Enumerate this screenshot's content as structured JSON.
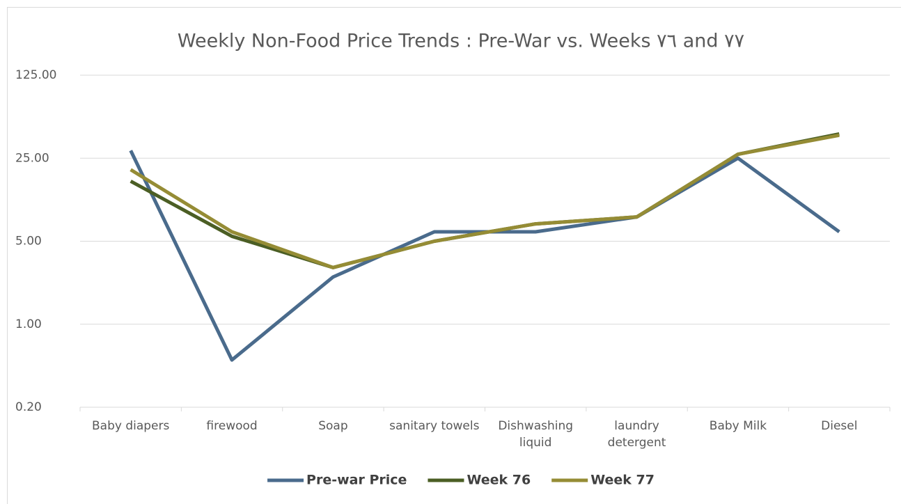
{
  "chart_data": {
    "type": "line",
    "title": "Weekly Non-Food Price Trends : Pre-War vs. Weeks ٧٦ and ٧٧",
    "categories": [
      "Baby diapers",
      "firewood",
      "Soap",
      "sanitary towels",
      "Dishwashing liquid",
      "laundry detergent",
      "Baby Milk",
      "Diesel"
    ],
    "series": [
      {
        "name": "Pre-war Price",
        "color": "#4a6b8c",
        "values": [
          29,
          0.5,
          2.5,
          6,
          6,
          8,
          25,
          6
        ]
      },
      {
        "name": "Week 76",
        "color": "#4b5e24",
        "values": [
          16,
          5.5,
          3,
          5,
          7,
          8,
          27,
          40
        ]
      },
      {
        "name": "Week 77",
        "color": "#958c35",
        "values": [
          20,
          6,
          3,
          5,
          7,
          8,
          27,
          39
        ]
      }
    ],
    "ylim": [
      0.2,
      125
    ],
    "yticks": [
      {
        "value": 0.2,
        "label": "0.20"
      },
      {
        "value": 1,
        "label": "1.00"
      },
      {
        "value": 5,
        "label": "5.00"
      },
      {
        "value": 25,
        "label": "25.00"
      },
      {
        "value": 125,
        "label": "125.00"
      }
    ],
    "log_scale": true,
    "grid": true,
    "legend": "bottom"
  }
}
